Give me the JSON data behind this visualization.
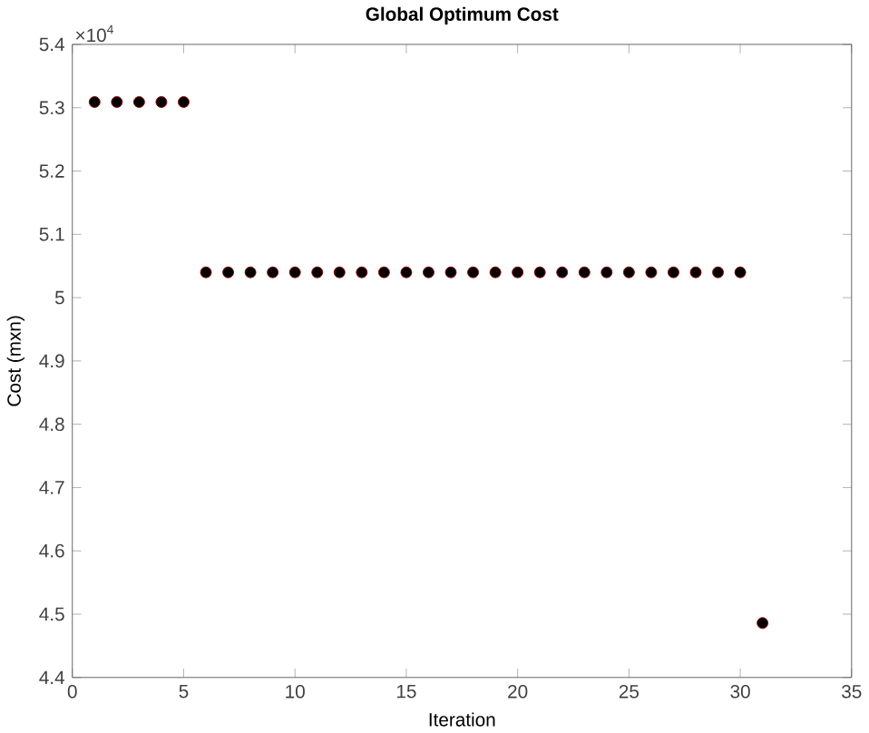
{
  "chart_data": {
    "type": "scatter",
    "title": "Global Optimum Cost",
    "xlabel": "Iteration",
    "ylabel": "Cost (mxn)",
    "annotations": [
      "×10$^{4}$"
    ],
    "marker": "circle",
    "grid": false,
    "series": [
      {
        "color": "#000000",
        "x": [
          1,
          2,
          3,
          4,
          5,
          6,
          7,
          8,
          9,
          10,
          11,
          12,
          13,
          14,
          15,
          16,
          17,
          18,
          19,
          20,
          21,
          22,
          23,
          24,
          25,
          26,
          27,
          28,
          29,
          30
        ],
        "values": [
          5.309,
          5.309,
          5.309,
          5.309,
          5.309,
          5.04,
          5.04,
          5.04,
          5.04,
          5.04,
          5.04,
          5.04,
          5.04,
          5.04,
          5.04,
          5.04,
          5.04,
          5.04,
          5.04,
          5.04,
          5.04,
          5.04,
          5.04,
          5.04,
          5.04,
          5.04,
          5.04,
          5.04,
          5.04,
          5.04
        ]
      },
      {
        "color": "#000000",
        "x": [
          31
        ],
        "values": [
          4.486
        ]
      }
    ],
    "xlim": [
      0,
      35
    ],
    "xticks": [
      0,
      5,
      10,
      15,
      20,
      25,
      30,
      35
    ],
    "ylim": [
      4.4,
      5.4
    ],
    "yticks": [
      4.4,
      4.5,
      4.6,
      4.7,
      4.8,
      4.9,
      5,
      5.1,
      5.2,
      5.3,
      5.4
    ]
  }
}
